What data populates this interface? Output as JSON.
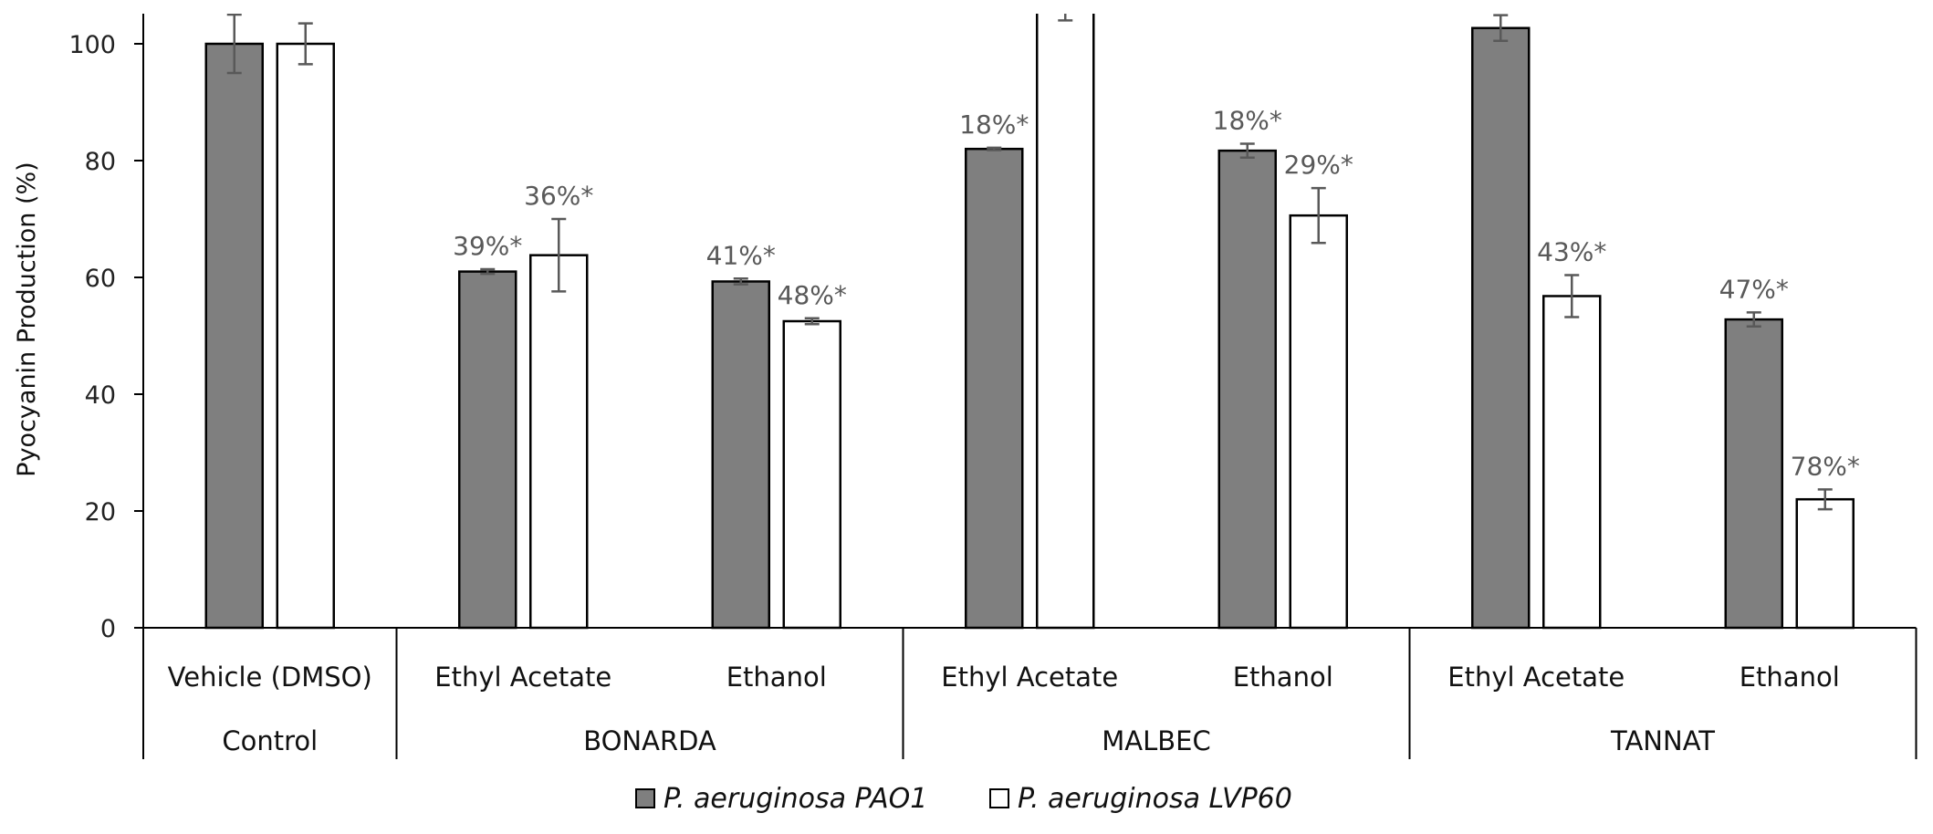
{
  "chart_data": {
    "type": "bar",
    "title": "",
    "xlabel": "",
    "ylabel": "Pyocyanin Production (%)",
    "ylim": [
      0,
      105
    ],
    "yticks": [
      0,
      20,
      40,
      60,
      80,
      100
    ],
    "grid": false,
    "categories": [
      "Vehicle (DMSO)",
      "Ethyl Acetate",
      "Ethanol",
      "Ethyl Acetate",
      "Ethanol",
      "Ethyl Acetate",
      "Ethanol"
    ],
    "groups": [
      {
        "label": "Control",
        "span": 1
      },
      {
        "label": "BONARDA",
        "span": 2
      },
      {
        "label": "MALBEC",
        "span": 2
      },
      {
        "label": "TANNAT",
        "span": 2
      }
    ],
    "series": [
      {
        "name": "P. aeruginosa PAO1",
        "color": "#7f7f7f",
        "values": [
          100,
          61,
          59.3,
          82,
          81.7,
          102.7,
          52.8
        ],
        "errors": [
          5,
          0.4,
          0.5,
          0.2,
          1.2,
          2.2,
          1.2
        ],
        "labels": [
          "",
          "39%*",
          "41%*",
          "18%*",
          "18%*",
          "",
          "47%*"
        ]
      },
      {
        "name": "P. aeruginosa LVP60",
        "color": "#ffffff",
        "values": [
          100,
          63.8,
          52.5,
          110,
          70.6,
          56.8,
          22
        ],
        "errors": [
          3.5,
          6.2,
          0.5,
          6,
          4.7,
          3.6,
          1.7
        ],
        "labels": [
          "",
          "36%*",
          "48%*",
          "",
          "29%*",
          "43%*",
          "78%*"
        ]
      }
    ],
    "legend_position": "bottom"
  }
}
